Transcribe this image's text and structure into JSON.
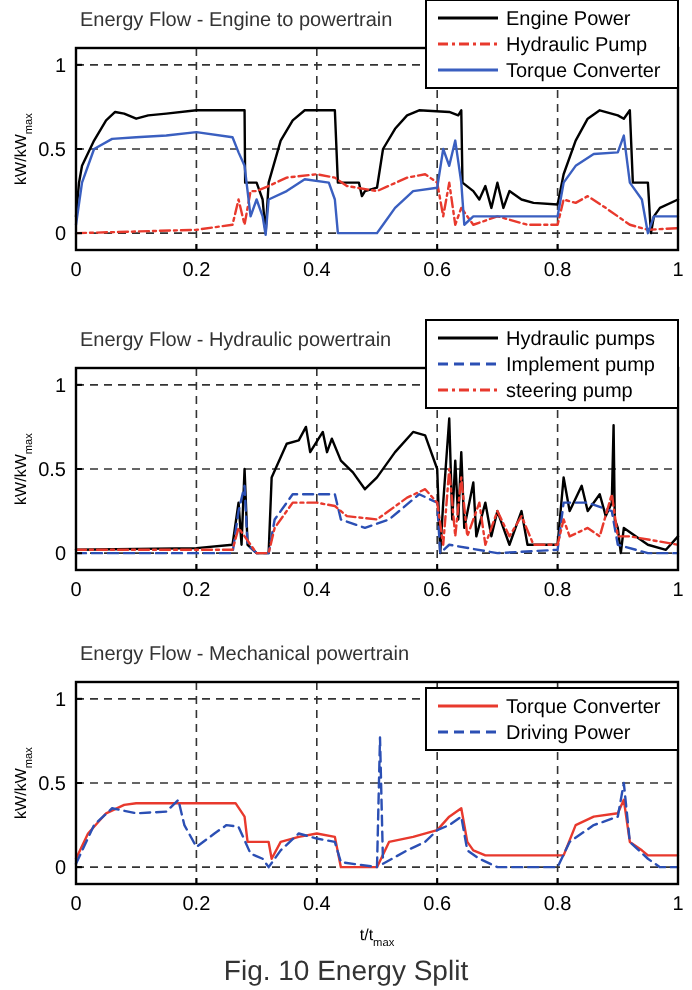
{
  "chart_data": [
    {
      "type": "line",
      "title": "Energy Flow - Engine to powertrain",
      "ylabel": "kW/kW$_{max}$",
      "xlim": [
        0,
        1
      ],
      "xticks": [
        0,
        0.2,
        0.4,
        0.6,
        0.8,
        1
      ],
      "ylim": [
        -0.1,
        1.1
      ],
      "yticks": [
        0,
        0.5,
        1
      ],
      "grid": true,
      "legend": "top right",
      "series": [
        {
          "name": "Engine Power",
          "color": "#000000",
          "line_style": "solid",
          "x": [
            0,
            0.005,
            0.01,
            0.03,
            0.05,
            0.065,
            0.08,
            0.1,
            0.12,
            0.15,
            0.2,
            0.25,
            0.28,
            0.281,
            0.3,
            0.31,
            0.315,
            0.32,
            0.34,
            0.36,
            0.38,
            0.43,
            0.435,
            0.47,
            0.475,
            0.48,
            0.5,
            0.51,
            0.53,
            0.55,
            0.57,
            0.62,
            0.635,
            0.64,
            0.642,
            0.66,
            0.67,
            0.68,
            0.69,
            0.7,
            0.71,
            0.72,
            0.74,
            0.76,
            0.8,
            0.81,
            0.83,
            0.85,
            0.87,
            0.9,
            0.91,
            0.92,
            0.925,
            0.95,
            0.955,
            0.96,
            0.97,
            1
          ],
          "values": [
            0.1,
            0.3,
            0.4,
            0.55,
            0.67,
            0.72,
            0.71,
            0.68,
            0.7,
            0.71,
            0.73,
            0.73,
            0.73,
            0.3,
            0.3,
            0.2,
            0,
            0.3,
            0.55,
            0.67,
            0.73,
            0.73,
            0.3,
            0.3,
            0.22,
            0.25,
            0.27,
            0.5,
            0.62,
            0.7,
            0.73,
            0.72,
            0.7,
            0.73,
            0.3,
            0.25,
            0.2,
            0.28,
            0.15,
            0.3,
            0.15,
            0.25,
            0.2,
            0.18,
            0.17,
            0.35,
            0.55,
            0.68,
            0.73,
            0.7,
            0.68,
            0.73,
            0.3,
            0.3,
            0,
            0.1,
            0.15,
            0.2
          ]
        },
        {
          "name": "Hydraulic Pump",
          "color": "#e8392d",
          "line_style": "dashdot",
          "x": [
            0,
            0.2,
            0.26,
            0.27,
            0.28,
            0.29,
            0.3,
            0.32,
            0.35,
            0.4,
            0.43,
            0.45,
            0.5,
            0.55,
            0.58,
            0.6,
            0.61,
            0.62,
            0.63,
            0.64,
            0.66,
            0.7,
            0.75,
            0.8,
            0.81,
            0.83,
            0.85,
            0.88,
            0.92,
            0.95,
            1
          ],
          "values": [
            0,
            0.02,
            0.05,
            0.2,
            0.05,
            0.25,
            0.25,
            0.28,
            0.33,
            0.35,
            0.33,
            0.28,
            0.25,
            0.33,
            0.35,
            0.3,
            0.1,
            0.3,
            0.05,
            0.15,
            0.05,
            0.1,
            0.05,
            0.05,
            0.2,
            0.18,
            0.22,
            0.15,
            0.05,
            0.02,
            0.03
          ]
        },
        {
          "name": "Torque Converter",
          "color": "#3a5fc0",
          "line_style": "solid",
          "x": [
            0,
            0.01,
            0.03,
            0.06,
            0.1,
            0.15,
            0.2,
            0.26,
            0.27,
            0.28,
            0.29,
            0.3,
            0.31,
            0.315,
            0.32,
            0.35,
            0.38,
            0.42,
            0.43,
            0.435,
            0.5,
            0.51,
            0.53,
            0.56,
            0.6,
            0.61,
            0.62,
            0.63,
            0.64,
            0.645,
            0.66,
            0.8,
            0.81,
            0.83,
            0.86,
            0.9,
            0.91,
            0.92,
            0.94,
            0.95,
            0.96,
            1
          ],
          "values": [
            0.05,
            0.3,
            0.5,
            0.56,
            0.57,
            0.58,
            0.6,
            0.57,
            0.48,
            0.4,
            0.1,
            0.2,
            0.1,
            -0.01,
            0.2,
            0.25,
            0.32,
            0.3,
            0.2,
            0,
            0,
            0.05,
            0.15,
            0.25,
            0.27,
            0.5,
            0.4,
            0.55,
            0.3,
            0.05,
            0.1,
            0.1,
            0.3,
            0.4,
            0.47,
            0.48,
            0.58,
            0.3,
            0.2,
            0,
            0.1,
            0.1
          ]
        }
      ]
    },
    {
      "type": "line",
      "title": "Energy Flow - Hydraulic powertrain",
      "ylabel": "kW/kW$_{max}$",
      "xlim": [
        0,
        1
      ],
      "xticks": [
        0,
        0.2,
        0.4,
        0.6,
        0.8,
        1
      ],
      "ylim": [
        -0.1,
        1.1
      ],
      "yticks": [
        0,
        0.5,
        1
      ],
      "grid": true,
      "legend": "top right",
      "series": [
        {
          "name": "Hydraulic pumps",
          "color": "#000000",
          "line_style": "solid",
          "x": [
            0,
            0.2,
            0.26,
            0.27,
            0.275,
            0.28,
            0.285,
            0.3,
            0.32,
            0.325,
            0.35,
            0.37,
            0.382,
            0.389,
            0.41,
            0.417,
            0.425,
            0.44,
            0.46,
            0.48,
            0.5,
            0.53,
            0.56,
            0.58,
            0.6,
            0.605,
            0.61,
            0.62,
            0.625,
            0.63,
            0.635,
            0.64,
            0.645,
            0.66,
            0.665,
            0.68,
            0.69,
            0.7,
            0.72,
            0.74,
            0.75,
            0.77,
            0.8,
            0.81,
            0.82,
            0.84,
            0.85,
            0.87,
            0.88,
            0.89,
            0.893,
            0.895,
            0.9,
            0.905,
            0.91,
            0.95,
            0.98,
            1
          ],
          "values": [
            0.02,
            0.03,
            0.05,
            0.3,
            0.05,
            0.5,
            0.05,
            0,
            0,
            0.45,
            0.65,
            0.67,
            0.75,
            0.6,
            0.72,
            0.6,
            0.68,
            0.55,
            0.48,
            0.38,
            0.45,
            0.6,
            0.72,
            0.7,
            0.5,
            0,
            0.3,
            0.8,
            0.2,
            0.55,
            0.2,
            0.6,
            0.15,
            0.42,
            0.1,
            0.3,
            0.1,
            0.25,
            0.05,
            0.25,
            0.05,
            0.05,
            0.05,
            0.45,
            0.25,
            0.4,
            0.25,
            0.35,
            0.22,
            0.3,
            0.76,
            0.2,
            0.15,
            0,
            0.15,
            0.05,
            0.02,
            0.1
          ]
        },
        {
          "name": "Implement pump",
          "color": "#2b4fb4",
          "line_style": "dashed",
          "x": [
            0,
            0.26,
            0.27,
            0.28,
            0.285,
            0.3,
            0.32,
            0.33,
            0.36,
            0.4,
            0.43,
            0.44,
            0.48,
            0.52,
            0.57,
            0.6,
            0.605,
            0.62,
            0.7,
            0.8,
            0.81,
            0.85,
            0.89,
            0.9,
            0.95,
            1
          ],
          "values": [
            0,
            0,
            0.25,
            0.4,
            0.05,
            0,
            0,
            0.2,
            0.35,
            0.35,
            0.35,
            0.2,
            0.15,
            0.2,
            0.35,
            0.3,
            0,
            0.05,
            0,
            0.02,
            0.3,
            0.3,
            0.25,
            0.05,
            0,
            0
          ]
        },
        {
          "name": "steering pump",
          "color": "#e8392d",
          "line_style": "dashdot",
          "x": [
            0,
            0.26,
            0.27,
            0.3,
            0.32,
            0.33,
            0.36,
            0.4,
            0.43,
            0.45,
            0.5,
            0.55,
            0.58,
            0.6,
            0.61,
            0.62,
            0.63,
            0.64,
            0.65,
            0.67,
            0.68,
            0.7,
            0.72,
            0.74,
            0.76,
            0.8,
            0.81,
            0.82,
            0.85,
            0.87,
            0.89,
            0.9,
            0.92,
            1
          ],
          "values": [
            0.02,
            0.02,
            0.15,
            0,
            0,
            0.15,
            0.3,
            0.3,
            0.28,
            0.22,
            0.2,
            0.33,
            0.38,
            0.3,
            0.05,
            0.5,
            0.1,
            0.45,
            0.1,
            0.3,
            0.05,
            0.25,
            0.1,
            0.22,
            0.05,
            0.05,
            0.2,
            0.1,
            0.15,
            0.1,
            0.35,
            0.1,
            0.1,
            0.05
          ]
        }
      ]
    },
    {
      "type": "line",
      "title": "Energy Flow - Mechanical powertrain",
      "ylabel": "kW/kW$_{max}$",
      "xlabel": "t/t$_{max}$",
      "xlim": [
        0,
        1
      ],
      "xticks": [
        0,
        0.2,
        0.4,
        0.6,
        0.8,
        1
      ],
      "ylim": [
        -0.1,
        1.1
      ],
      "yticks": [
        0,
        0.5,
        1
      ],
      "grid": true,
      "legend": "top right",
      "annotations": [
        "Fig. 10 Energy Split"
      ],
      "series": [
        {
          "name": "Torque Converter",
          "color": "#e8392d",
          "line_style": "solid",
          "x": [
            0,
            0.02,
            0.05,
            0.08,
            0.1,
            0.15,
            0.2,
            0.265,
            0.28,
            0.285,
            0.32,
            0.325,
            0.34,
            0.37,
            0.4,
            0.43,
            0.44,
            0.5,
            0.52,
            0.56,
            0.6,
            0.62,
            0.64,
            0.65,
            0.66,
            0.68,
            0.81,
            0.83,
            0.86,
            0.9,
            0.91,
            0.92,
            0.94,
            0.95,
            1
          ],
          "values": [
            0.05,
            0.2,
            0.32,
            0.37,
            0.38,
            0.38,
            0.38,
            0.38,
            0.3,
            0.15,
            0.15,
            0.05,
            0.15,
            0.18,
            0.2,
            0.18,
            0,
            0,
            0.15,
            0.18,
            0.22,
            0.3,
            0.35,
            0.15,
            0.1,
            0.07,
            0.07,
            0.25,
            0.3,
            0.32,
            0.4,
            0.15,
            0.1,
            0.07,
            0.07
          ]
        },
        {
          "name": "Driving Power",
          "color": "#2b4fb4",
          "line_style": "dashed",
          "x": [
            0,
            0.03,
            0.06,
            0.1,
            0.15,
            0.17,
            0.18,
            0.2,
            0.23,
            0.25,
            0.27,
            0.29,
            0.31,
            0.32,
            0.34,
            0.37,
            0.4,
            0.43,
            0.44,
            0.5,
            0.505,
            0.51,
            0.55,
            0.58,
            0.6,
            0.62,
            0.64,
            0.65,
            0.67,
            0.7,
            0.8,
            0.82,
            0.86,
            0.9,
            0.91,
            0.92,
            0.95,
            0.97,
            1
          ],
          "values": [
            0.02,
            0.25,
            0.35,
            0.32,
            0.33,
            0.4,
            0.25,
            0.12,
            0.2,
            0.25,
            0.24,
            0.08,
            0.05,
            0,
            0.1,
            0.2,
            0.17,
            0.15,
            0.03,
            0,
            0.77,
            0.02,
            0.1,
            0.15,
            0.22,
            0.25,
            0.3,
            0.1,
            0.05,
            0,
            0,
            0.15,
            0.25,
            0.3,
            0.5,
            0.15,
            0.05,
            0,
            0
          ]
        }
      ]
    }
  ]
}
